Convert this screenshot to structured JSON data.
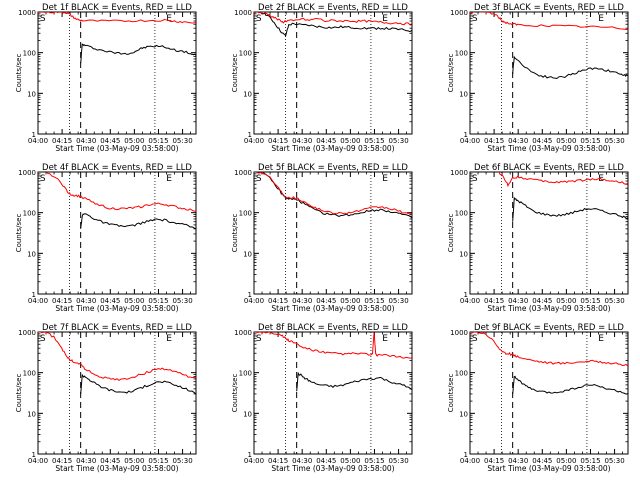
{
  "page": {
    "xlabel": "Start Time (03-May-09 03:58:00)",
    "ylabel": "Counts/sec",
    "x_ticks": [
      "04:00",
      "04:15",
      "04:30",
      "04:45",
      "05:00",
      "05:15",
      "05:30"
    ],
    "y_ticks": [
      "1",
      "10",
      "100",
      "1000"
    ],
    "marker_s": "S",
    "marker_e": "E",
    "colors": {
      "events": "#000000",
      "lld": "#ff0000"
    }
  },
  "chart_data": [
    {
      "type": "line",
      "title": "Det 1f BLACK = Events, RED = LLD",
      "xlim": [
        0,
        100
      ],
      "ylim": [
        1,
        1000
      ],
      "yscale": "log",
      "s_x": 3,
      "e_x": 83,
      "dot1_x": 20,
      "dash_x": 27,
      "dot2_x": 74,
      "series": [
        {
          "name": "Events",
          "color": "#000000",
          "x": [
            27,
            28,
            30,
            35,
            40,
            45,
            50,
            55,
            60,
            63,
            66,
            70,
            75,
            80,
            85,
            90,
            95,
            98,
            100
          ],
          "y": [
            55,
            160,
            150,
            130,
            115,
            105,
            98,
            95,
            100,
            115,
            130,
            140,
            145,
            140,
            120,
            110,
            100,
            90,
            85
          ]
        },
        {
          "name": "LLD",
          "color": "#ff0000",
          "x": [
            0,
            5,
            10,
            15,
            18,
            20,
            22,
            25,
            27,
            30,
            40,
            50,
            60,
            70,
            80,
            85,
            90,
            95,
            100
          ],
          "y": [
            1000,
            1000,
            1000,
            990,
            970,
            880,
            760,
            650,
            620,
            610,
            600,
            600,
            610,
            620,
            630,
            600,
            580,
            560,
            540
          ]
        }
      ]
    },
    {
      "type": "line",
      "title": "Det 2f BLACK = Events, RED = LLD",
      "xlim": [
        0,
        100
      ],
      "ylim": [
        1,
        1000
      ],
      "yscale": "log",
      "s_x": 3,
      "e_x": 83,
      "dot1_x": 20,
      "dash_x": 27,
      "dot2_x": 74,
      "series": [
        {
          "name": "Events",
          "color": "#000000",
          "x": [
            0,
            3,
            6,
            9,
            12,
            15,
            18,
            20,
            22,
            25,
            30,
            35,
            40,
            45,
            50,
            55,
            60,
            65,
            70,
            75,
            80,
            85,
            90,
            95,
            100
          ],
          "y": [
            1000,
            1000,
            950,
            800,
            600,
            420,
            300,
            260,
            480,
            520,
            480,
            470,
            440,
            420,
            410,
            430,
            420,
            410,
            400,
            395,
            400,
            390,
            380,
            360,
            340
          ]
        },
        {
          "name": "LLD",
          "color": "#ff0000",
          "x": [
            0,
            3,
            6,
            9,
            12,
            15,
            18,
            20,
            22,
            25,
            30,
            35,
            40,
            45,
            50,
            55,
            60,
            65,
            70,
            75,
            80,
            85,
            90,
            95,
            100
          ],
          "y": [
            1000,
            1000,
            980,
            880,
            760,
            660,
            560,
            600,
            620,
            600,
            680,
            620,
            700,
            600,
            620,
            600,
            610,
            590,
            600,
            580,
            560,
            540,
            540,
            520,
            500
          ]
        }
      ]
    },
    {
      "type": "line",
      "title": "Det 3f BLACK = Events, RED = LLD",
      "xlim": [
        0,
        100
      ],
      "ylim": [
        1,
        1000
      ],
      "yscale": "log",
      "s_x": 3,
      "e_x": 83,
      "dot1_x": 20,
      "dash_x": 27,
      "dot2_x": 74,
      "series": [
        {
          "name": "Events",
          "color": "#000000",
          "x": [
            27,
            28,
            30,
            35,
            40,
            45,
            50,
            55,
            60,
            65,
            70,
            75,
            80,
            85,
            90,
            95,
            98,
            100
          ],
          "y": [
            30,
            80,
            65,
            45,
            32,
            27,
            25,
            24,
            26,
            30,
            35,
            40,
            42,
            38,
            34,
            30,
            28,
            26
          ]
        },
        {
          "name": "LLD",
          "color": "#ff0000",
          "x": [
            0,
            5,
            10,
            15,
            18,
            20,
            22,
            25,
            28,
            30,
            40,
            50,
            60,
            70,
            80,
            90,
            100
          ],
          "y": [
            1000,
            1000,
            1000,
            900,
            750,
            620,
            560,
            520,
            500,
            480,
            470,
            460,
            450,
            440,
            430,
            410,
            380
          ]
        }
      ]
    },
    {
      "type": "line",
      "title": "Det 4f BLACK = Events, RED = LLD",
      "xlim": [
        0,
        100
      ],
      "ylim": [
        1,
        1000
      ],
      "yscale": "log",
      "s_x": 3,
      "e_x": 83,
      "dot1_x": 20,
      "dash_x": 27,
      "dot2_x": 74,
      "series": [
        {
          "name": "Events",
          "color": "#000000",
          "x": [
            27,
            28,
            30,
            33,
            36,
            40,
            45,
            50,
            55,
            60,
            65,
            70,
            75,
            80,
            85,
            90,
            95,
            100
          ],
          "y": [
            40,
            85,
            95,
            80,
            70,
            60,
            52,
            48,
            46,
            48,
            55,
            62,
            68,
            66,
            58,
            52,
            48,
            40
          ]
        },
        {
          "name": "LLD",
          "color": "#ff0000",
          "x": [
            0,
            5,
            10,
            15,
            18,
            20,
            22,
            25,
            28,
            30,
            35,
            40,
            45,
            50,
            55,
            60,
            65,
            70,
            75,
            80,
            85,
            90,
            95,
            100
          ],
          "y": [
            1000,
            1000,
            800,
            520,
            360,
            290,
            270,
            260,
            240,
            220,
            180,
            150,
            130,
            125,
            125,
            130,
            140,
            155,
            165,
            160,
            145,
            130,
            120,
            115
          ]
        }
      ]
    },
    {
      "type": "line",
      "title": "Det 5f BLACK = Events, RED = LLD",
      "xlim": [
        0,
        100
      ],
      "ylim": [
        1,
        1000
      ],
      "yscale": "log",
      "s_x": 3,
      "e_x": 83,
      "dot1_x": 20,
      "dash_x": 27,
      "dot2_x": 74,
      "series": [
        {
          "name": "Events",
          "color": "#000000",
          "x": [
            0,
            5,
            10,
            15,
            18,
            20,
            22,
            25,
            28,
            30,
            35,
            40,
            45,
            50,
            55,
            60,
            65,
            70,
            75,
            80,
            85,
            90,
            95,
            100
          ],
          "y": [
            1000,
            1000,
            700,
            400,
            280,
            230,
            220,
            215,
            200,
            180,
            140,
            110,
            95,
            88,
            85,
            88,
            95,
            105,
            115,
            118,
            110,
            100,
            88,
            75
          ]
        },
        {
          "name": "LLD",
          "color": "#ff0000",
          "x": [
            0,
            5,
            10,
            15,
            18,
            20,
            22,
            25,
            28,
            30,
            35,
            40,
            45,
            50,
            55,
            60,
            65,
            70,
            75,
            80,
            85,
            90,
            95,
            100
          ],
          "y": [
            1000,
            1000,
            750,
            430,
            300,
            250,
            240,
            235,
            220,
            200,
            160,
            125,
            108,
            100,
            97,
            100,
            108,
            120,
            132,
            138,
            128,
            115,
            100,
            88
          ]
        }
      ]
    },
    {
      "type": "line",
      "title": "Det 6f BLACK = Events, RED = LLD",
      "xlim": [
        0,
        100
      ],
      "ylim": [
        1,
        1000
      ],
      "yscale": "log",
      "s_x": 3,
      "e_x": 83,
      "dot1_x": 20,
      "dash_x": 27,
      "dot2_x": 74,
      "series": [
        {
          "name": "Events",
          "color": "#000000",
          "x": [
            27,
            28,
            30,
            33,
            36,
            40,
            45,
            50,
            55,
            60,
            65,
            70,
            75,
            80,
            85,
            90,
            95,
            98,
            100
          ],
          "y": [
            60,
            220,
            200,
            170,
            140,
            110,
            95,
            88,
            85,
            90,
            100,
            115,
            125,
            120,
            105,
            95,
            85,
            75,
            70
          ]
        },
        {
          "name": "LLD",
          "color": "#ff0000",
          "x": [
            18,
            20,
            22,
            24,
            27,
            30,
            35,
            40,
            45,
            50,
            55,
            60,
            65,
            70,
            75,
            80,
            85,
            90,
            95,
            100
          ],
          "y": [
            1000,
            850,
            650,
            480,
            720,
            750,
            700,
            650,
            600,
            570,
            560,
            580,
            600,
            620,
            650,
            680,
            650,
            600,
            560,
            520
          ]
        }
      ]
    },
    {
      "type": "line",
      "title": "Det 7f BLACK = Events, RED = LLD",
      "xlim": [
        0,
        100
      ],
      "ylim": [
        1,
        1000
      ],
      "yscale": "log",
      "s_x": 3,
      "e_x": 83,
      "dot1_x": 20,
      "dash_x": 27,
      "dot2_x": 74,
      "series": [
        {
          "name": "Events",
          "color": "#000000",
          "x": [
            27,
            28,
            30,
            33,
            36,
            40,
            45,
            50,
            55,
            60,
            65,
            70,
            75,
            80,
            85,
            90,
            95,
            100
          ],
          "y": [
            30,
            85,
            80,
            65,
            55,
            45,
            38,
            34,
            33,
            35,
            42,
            50,
            58,
            60,
            52,
            45,
            38,
            30
          ]
        },
        {
          "name": "LLD",
          "color": "#ff0000",
          "x": [
            0,
            5,
            10,
            15,
            18,
            20,
            22,
            25,
            28,
            30,
            35,
            40,
            45,
            50,
            55,
            60,
            65,
            70,
            75,
            80,
            85,
            90,
            95,
            100
          ],
          "y": [
            1000,
            1000,
            750,
            400,
            260,
            210,
            190,
            175,
            150,
            120,
            95,
            78,
            70,
            68,
            70,
            78,
            90,
            105,
            120,
            125,
            110,
            95,
            82,
            70
          ]
        }
      ]
    },
    {
      "type": "line",
      "title": "Det 8f BLACK = Events, RED = LLD",
      "xlim": [
        0,
        100
      ],
      "ylim": [
        1,
        1000
      ],
      "yscale": "log",
      "s_x": 3,
      "e_x": 83,
      "dot1_x": 20,
      "dash_x": 27,
      "dot2_x": 74,
      "series": [
        {
          "name": "Events",
          "color": "#000000",
          "x": [
            27,
            28,
            30,
            33,
            36,
            40,
            45,
            50,
            55,
            60,
            65,
            70,
            75,
            80,
            85,
            90,
            95,
            100
          ],
          "y": [
            35,
            95,
            85,
            70,
            60,
            52,
            48,
            46,
            48,
            55,
            62,
            68,
            72,
            75,
            62,
            55,
            48,
            40
          ]
        },
        {
          "name": "LLD",
          "color": "#ff0000",
          "x": [
            0,
            5,
            10,
            15,
            18,
            20,
            22,
            25,
            28,
            30,
            35,
            40,
            45,
            50,
            55,
            60,
            65,
            70,
            75,
            76,
            77,
            78,
            80,
            85,
            90,
            95,
            100
          ],
          "y": [
            1000,
            1000,
            1000,
            900,
            800,
            700,
            620,
            560,
            480,
            430,
            380,
            340,
            310,
            300,
            290,
            290,
            300,
            290,
            280,
            1000,
            280,
            270,
            280,
            260,
            250,
            240,
            230
          ]
        }
      ]
    },
    {
      "type": "line",
      "title": "Det 9f BLACK = Events, RED = LLD",
      "xlim": [
        0,
        100
      ],
      "ylim": [
        1,
        1000
      ],
      "yscale": "log",
      "s_x": 3,
      "e_x": 83,
      "dot1_x": 20,
      "dash_x": 27,
      "dot2_x": 74,
      "series": [
        {
          "name": "Events",
          "color": "#000000",
          "x": [
            27,
            28,
            30,
            33,
            36,
            40,
            45,
            50,
            55,
            60,
            65,
            70,
            75,
            80,
            85,
            90,
            95,
            100
          ],
          "y": [
            30,
            80,
            70,
            55,
            45,
            38,
            34,
            32,
            33,
            36,
            40,
            45,
            50,
            48,
            42,
            38,
            34,
            30
          ]
        },
        {
          "name": "LLD",
          "color": "#ff0000",
          "x": [
            0,
            5,
            10,
            15,
            18,
            20,
            22,
            25,
            28,
            30,
            35,
            40,
            45,
            50,
            55,
            60,
            65,
            70,
            75,
            80,
            85,
            90,
            95,
            100
          ],
          "y": [
            1000,
            1000,
            900,
            600,
            420,
            330,
            300,
            290,
            270,
            250,
            220,
            200,
            185,
            175,
            170,
            172,
            178,
            185,
            192,
            190,
            180,
            170,
            160,
            150
          ]
        }
      ]
    }
  ]
}
